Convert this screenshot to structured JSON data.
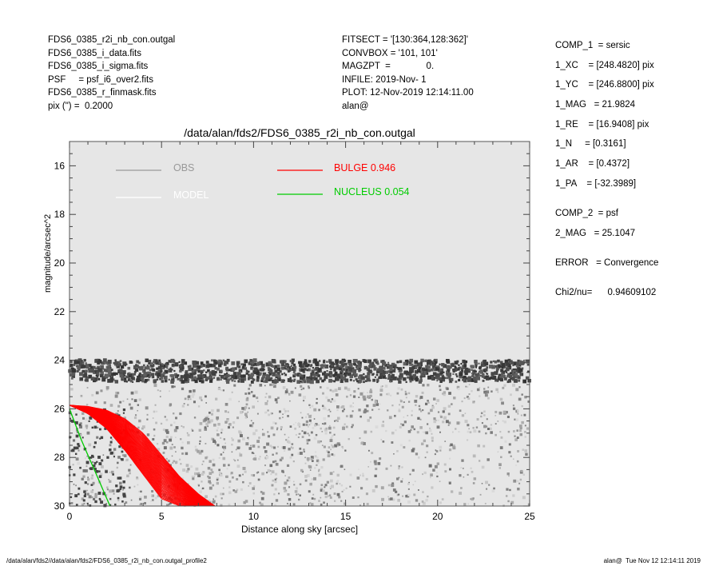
{
  "header_left": [
    "FDS6_0385_r2i_nb_con.outgal",
    "FDS6_0385_i_data.fits",
    "FDS6_0385_i_sigma.fits",
    "PSF     = psf_i6_over2.fits",
    "FDS6_0385_r_finmask.fits",
    "pix (\") =  0.2000"
  ],
  "header_mid": [
    "FITSECT = '[130:364,128:362]'",
    "CONVBOX = '101, 101'",
    "MAGZPT  =              0.",
    "INFILE: 2019-Nov- 1",
    "PLOT: 12-Nov-2019 12:14:11.00",
    "alan@"
  ],
  "header_right": [
    {
      "text": "COMP_1  = sersic",
      "gap": 0
    },
    {
      "text": "1_XC    = [248.4820] pix",
      "gap": 0
    },
    {
      "text": "1_YC    = [246.8800] pix",
      "gap": 0
    },
    {
      "text": "1_MAG   = 21.9824",
      "gap": 0
    },
    {
      "text": "1_RE    = [16.9408] pix",
      "gap": 0
    },
    {
      "text": "1_N     = [0.3161]",
      "gap": 0
    },
    {
      "text": "1_AR    = [0.4372]",
      "gap": 0
    },
    {
      "text": "1_PA    = [-32.3989]",
      "gap": 0
    },
    {
      "text": "COMP_2  = psf",
      "gap": 1
    },
    {
      "text": "2_MAG   = 25.1047",
      "gap": 0
    },
    {
      "text": "ERROR   = Convergence",
      "gap": 1
    },
    {
      "text": "Chi2/nu=      0.94609102",
      "gap": 1
    }
  ],
  "footer_left": "/data/alan/fds2//data/alan/fds2/FDS6_0385_r2i_nb_con.outgal_profile2",
  "footer_right": "alan@  Tue Nov 12 12:14:11 2019",
  "chart_data": {
    "type": "scatter",
    "title": "/data/alan/fds2/FDS6_0385_r2i_nb_con.outgal",
    "xlabel": "Distance along sky [arcsec]",
    "ylabel": "magnitude/arcsec^2",
    "xlim": [
      0,
      25
    ],
    "ylim": [
      30,
      15
    ],
    "y_inverted": true,
    "xticks": [
      0,
      5,
      10,
      15,
      20,
      25
    ],
    "yticks": [
      16,
      18,
      20,
      22,
      24,
      26,
      28,
      30
    ],
    "grid": false,
    "background": "#e6e6e6",
    "legend": [
      {
        "label": "OBS",
        "color": "#999999"
      },
      {
        "label": "MODEL",
        "color": "#ffffff"
      },
      {
        "label": "BULGE  0.946",
        "color": "#ff0000"
      },
      {
        "label": "NUCLEUS  0.054",
        "color": "#00cc00"
      }
    ],
    "series": [
      {
        "name": "OBS",
        "color": "#777777",
        "description_band": [
          24.0,
          24.9
        ],
        "diffuse_range": [
          25.0,
          30.0
        ]
      },
      {
        "name": "MODEL",
        "color": "#ffffff",
        "points": []
      },
      {
        "name": "BULGE  0.946",
        "color": "#ff0000",
        "x": [
          0,
          1,
          2,
          3,
          4,
          5,
          6,
          7,
          7.9
        ],
        "y_top": [
          25.85,
          25.9,
          26.05,
          26.4,
          27.0,
          27.9,
          28.8,
          29.5,
          30.0
        ],
        "y_bottom": [
          25.85,
          26.2,
          26.8,
          27.7,
          28.7,
          29.7,
          30.0,
          30.0,
          30.0
        ]
      },
      {
        "name": "NUCLEUS  0.054",
        "color": "#00cc00",
        "x": [
          0,
          0.3,
          0.6,
          1.0,
          1.4,
          1.8,
          2.2
        ],
        "y": [
          26.0,
          26.6,
          27.2,
          27.9,
          28.6,
          29.3,
          30.0
        ]
      }
    ]
  }
}
